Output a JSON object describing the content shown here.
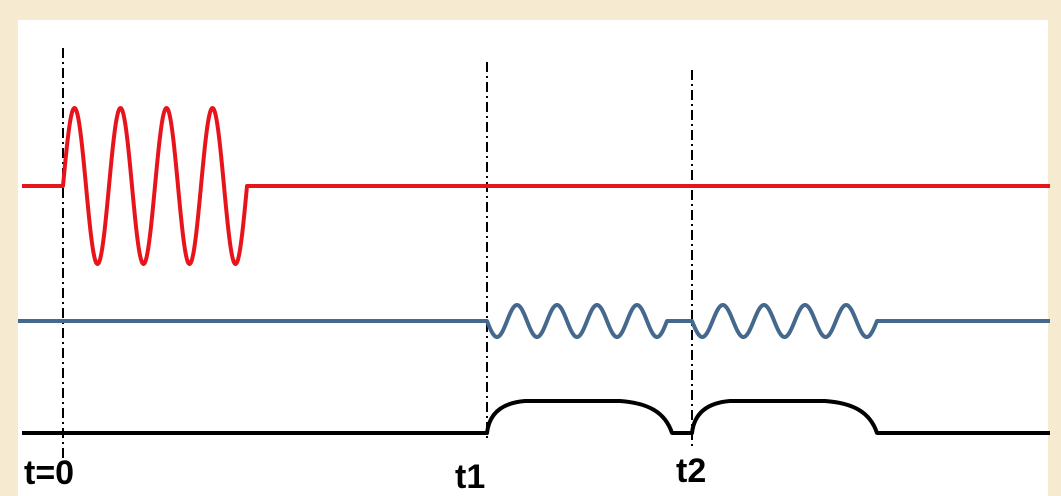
{
  "labels": {
    "t0": "t=0",
    "t1": "t1",
    "t2": "t2"
  },
  "colors": {
    "background": "#f6ebd0",
    "panel": "#ffffff",
    "red_trace": "#e8141c",
    "blue_trace": "#44698c",
    "black_trace": "#000000",
    "markers": "#000000"
  }
}
